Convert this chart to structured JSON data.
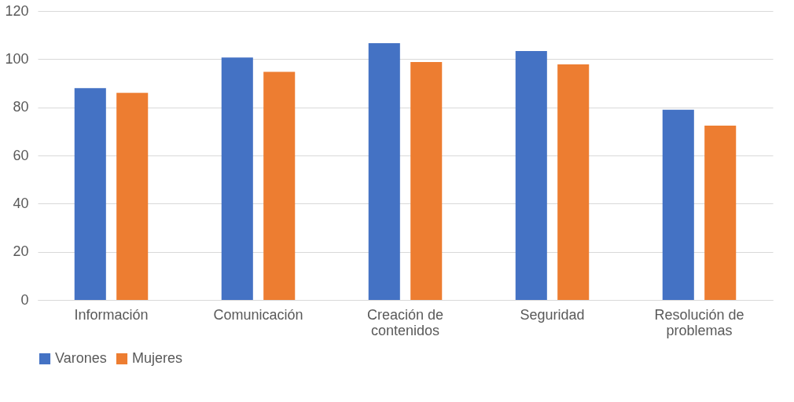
{
  "chart_data": {
    "type": "bar",
    "categories": [
      "Información",
      "Comunicación",
      "Creación de contenidos",
      "Seguridad",
      "Resolución de problemas"
    ],
    "series": [
      {
        "name": "Varones",
        "color": "#4472c4",
        "values": [
          88,
          100.7,
          106.6,
          103.4,
          79
        ]
      },
      {
        "name": "Mujeres",
        "color": "#ed7d31",
        "values": [
          86,
          94.7,
          98.8,
          97.8,
          72.4
        ]
      }
    ],
    "ylim": [
      0,
      120
    ],
    "yticks": [
      0,
      20,
      40,
      60,
      80,
      100,
      120
    ],
    "grid": "y",
    "legend": "bottom"
  }
}
